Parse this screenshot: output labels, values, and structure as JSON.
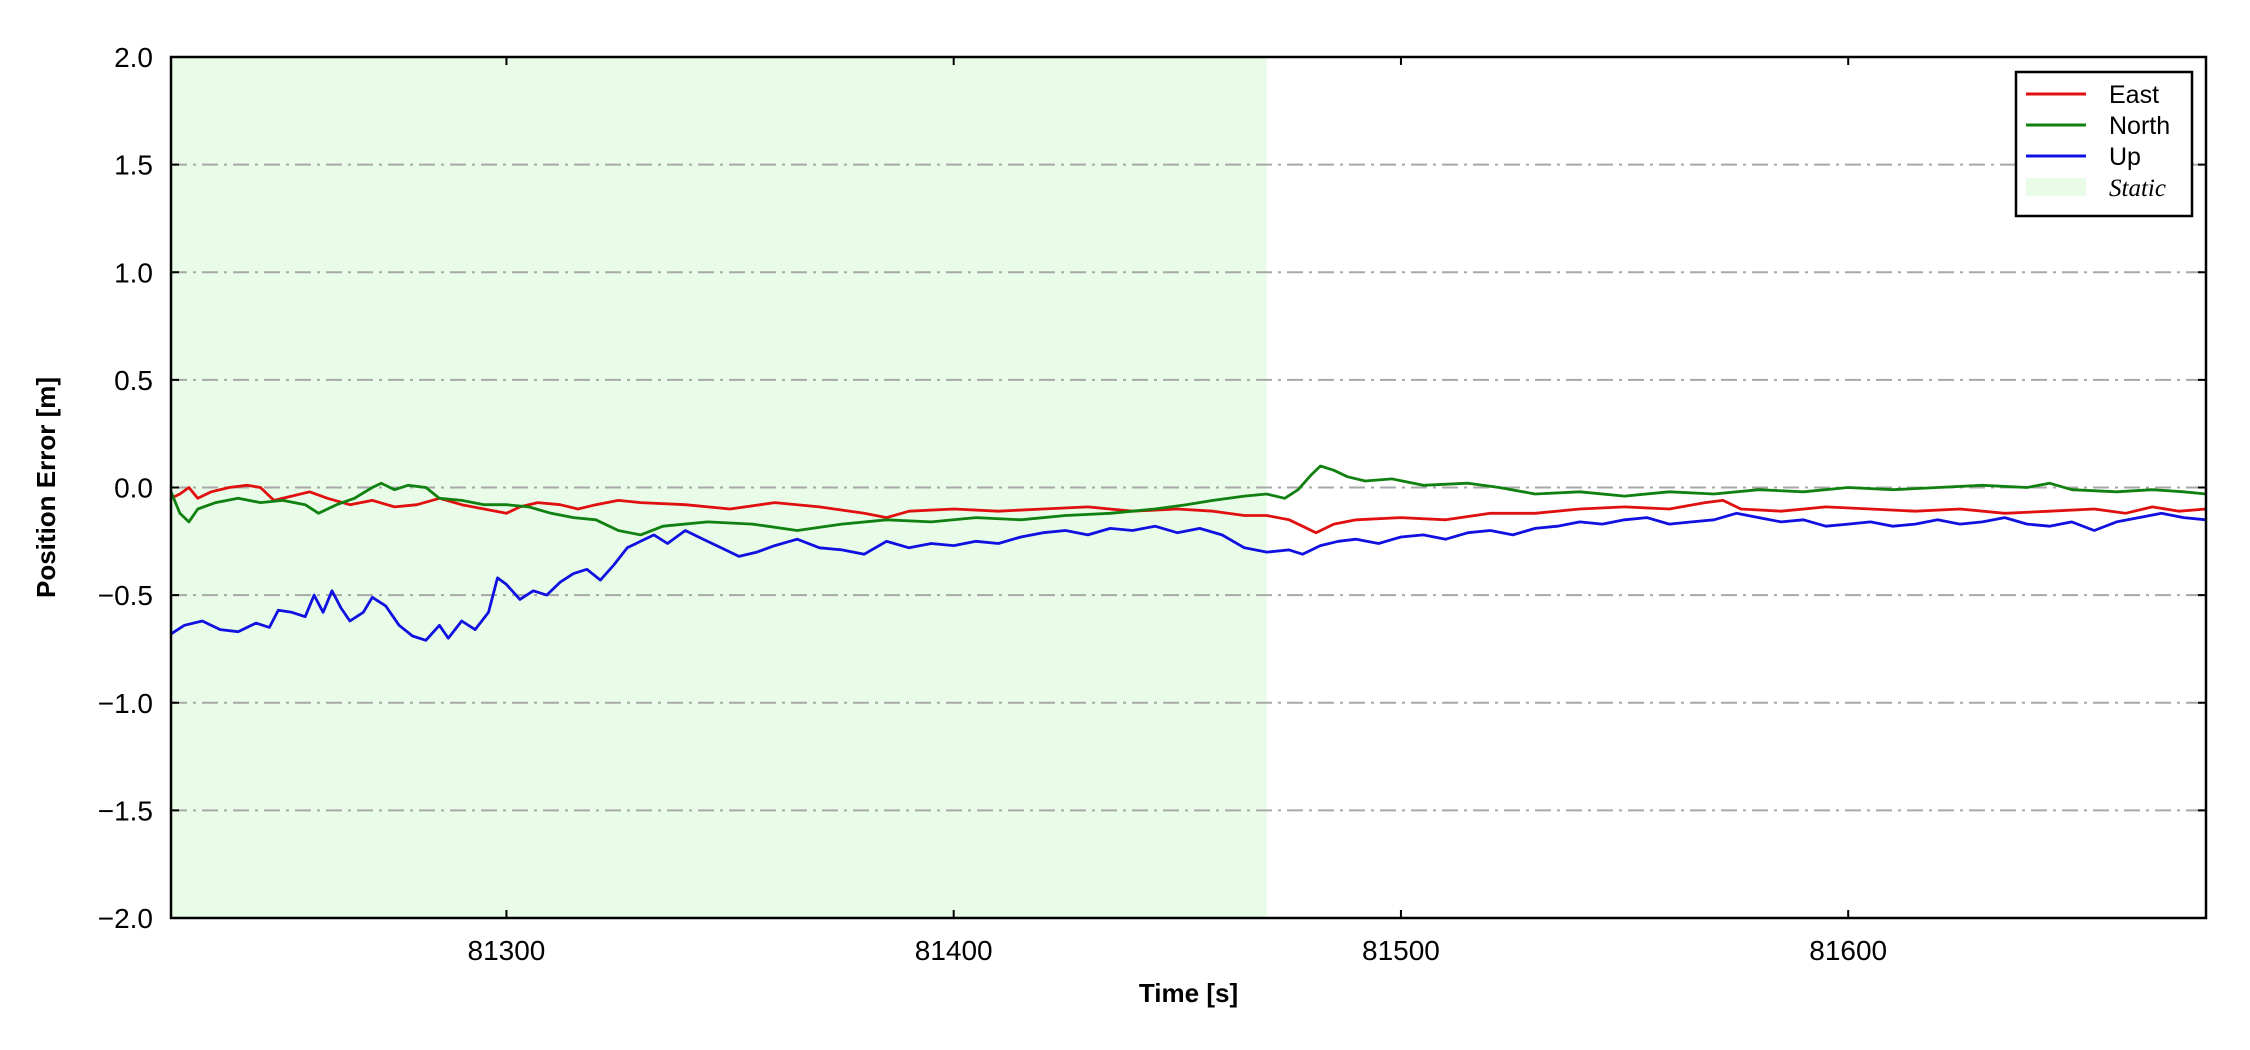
{
  "chart_data": {
    "type": "line",
    "xlabel": "Time [s]",
    "ylabel": "Position Error [m]",
    "xlim": [
      81225,
      81680
    ],
    "ylim": [
      -2.0,
      2.0
    ],
    "xticks": [
      81300,
      81400,
      81500,
      81600
    ],
    "xtick_labels": [
      "81300",
      "81400",
      "81500",
      "81600"
    ],
    "yticks": [
      2.0,
      1.5,
      1.0,
      0.5,
      0.0,
      -0.5,
      -1.0,
      -1.5,
      -2.0
    ],
    "ytick_labels": [
      "2.0",
      "1.5",
      "1.0",
      "0.5",
      "0.0",
      "−0.5",
      "−1.0",
      "−1.5",
      "−2.0"
    ],
    "grid": "horizontal dash-dot",
    "legend_placement": "top-right",
    "shaded_region": {
      "name": "Static",
      "x": [
        81225,
        81470
      ],
      "color": "#e8fce8"
    },
    "series": [
      {
        "name": "East",
        "color": "#e01010",
        "points": [
          [
            81225,
            -0.05
          ],
          [
            81227,
            -0.03
          ],
          [
            81229,
            0.0
          ],
          [
            81231,
            -0.05
          ],
          [
            81234,
            -0.02
          ],
          [
            81238,
            0.0
          ],
          [
            81242,
            0.01
          ],
          [
            81245,
            0.0
          ],
          [
            81248,
            -0.06
          ],
          [
            81252,
            -0.04
          ],
          [
            81256,
            -0.02
          ],
          [
            81260,
            -0.05
          ],
          [
            81265,
            -0.08
          ],
          [
            81270,
            -0.06
          ],
          [
            81275,
            -0.09
          ],
          [
            81280,
            -0.08
          ],
          [
            81285,
            -0.05
          ],
          [
            81290,
            -0.08
          ],
          [
            81295,
            -0.1
          ],
          [
            81300,
            -0.12
          ],
          [
            81303,
            -0.09
          ],
          [
            81307,
            -0.07
          ],
          [
            81312,
            -0.08
          ],
          [
            81316,
            -0.1
          ],
          [
            81320,
            -0.08
          ],
          [
            81325,
            -0.06
          ],
          [
            81330,
            -0.07
          ],
          [
            81340,
            -0.08
          ],
          [
            81350,
            -0.1
          ],
          [
            81360,
            -0.07
          ],
          [
            81370,
            -0.09
          ],
          [
            81380,
            -0.12
          ],
          [
            81385,
            -0.14
          ],
          [
            81390,
            -0.11
          ],
          [
            81400,
            -0.1
          ],
          [
            81410,
            -0.11
          ],
          [
            81420,
            -0.1
          ],
          [
            81430,
            -0.09
          ],
          [
            81440,
            -0.11
          ],
          [
            81450,
            -0.1
          ],
          [
            81458,
            -0.11
          ],
          [
            81465,
            -0.13
          ],
          [
            81470,
            -0.13
          ],
          [
            81475,
            -0.15
          ],
          [
            81478,
            -0.18
          ],
          [
            81481,
            -0.21
          ],
          [
            81485,
            -0.17
          ],
          [
            81490,
            -0.15
          ],
          [
            81500,
            -0.14
          ],
          [
            81510,
            -0.15
          ],
          [
            81520,
            -0.12
          ],
          [
            81530,
            -0.12
          ],
          [
            81540,
            -0.1
          ],
          [
            81550,
            -0.09
          ],
          [
            81560,
            -0.1
          ],
          [
            81568,
            -0.07
          ],
          [
            81572,
            -0.06
          ],
          [
            81576,
            -0.1
          ],
          [
            81585,
            -0.11
          ],
          [
            81595,
            -0.09
          ],
          [
            81605,
            -0.1
          ],
          [
            81615,
            -0.11
          ],
          [
            81625,
            -0.1
          ],
          [
            81635,
            -0.12
          ],
          [
            81645,
            -0.11
          ],
          [
            81655,
            -0.1
          ],
          [
            81662,
            -0.12
          ],
          [
            81668,
            -0.09
          ],
          [
            81674,
            -0.11
          ],
          [
            81680,
            -0.1
          ]
        ]
      },
      {
        "name": "North",
        "color": "#108010",
        "points": [
          [
            81225,
            -0.02
          ],
          [
            81227,
            -0.12
          ],
          [
            81229,
            -0.16
          ],
          [
            81231,
            -0.1
          ],
          [
            81235,
            -0.07
          ],
          [
            81240,
            -0.05
          ],
          [
            81245,
            -0.07
          ],
          [
            81250,
            -0.06
          ],
          [
            81255,
            -0.08
          ],
          [
            81258,
            -0.12
          ],
          [
            81262,
            -0.08
          ],
          [
            81266,
            -0.05
          ],
          [
            81270,
            0.0
          ],
          [
            81272,
            0.02
          ],
          [
            81275,
            -0.01
          ],
          [
            81278,
            0.01
          ],
          [
            81282,
            0.0
          ],
          [
            81285,
            -0.05
          ],
          [
            81290,
            -0.06
          ],
          [
            81295,
            -0.08
          ],
          [
            81300,
            -0.08
          ],
          [
            81305,
            -0.09
          ],
          [
            81310,
            -0.12
          ],
          [
            81315,
            -0.14
          ],
          [
            81320,
            -0.15
          ],
          [
            81325,
            -0.2
          ],
          [
            81330,
            -0.22
          ],
          [
            81335,
            -0.18
          ],
          [
            81345,
            -0.16
          ],
          [
            81355,
            -0.17
          ],
          [
            81365,
            -0.2
          ],
          [
            81375,
            -0.17
          ],
          [
            81385,
            -0.15
          ],
          [
            81395,
            -0.16
          ],
          [
            81405,
            -0.14
          ],
          [
            81415,
            -0.15
          ],
          [
            81425,
            -0.13
          ],
          [
            81435,
            -0.12
          ],
          [
            81445,
            -0.1
          ],
          [
            81452,
            -0.08
          ],
          [
            81458,
            -0.06
          ],
          [
            81465,
            -0.04
          ],
          [
            81470,
            -0.03
          ],
          [
            81474,
            -0.05
          ],
          [
            81477,
            -0.01
          ],
          [
            81480,
            0.06
          ],
          [
            81482,
            0.1
          ],
          [
            81485,
            0.08
          ],
          [
            81488,
            0.05
          ],
          [
            81492,
            0.03
          ],
          [
            81498,
            0.04
          ],
          [
            81505,
            0.01
          ],
          [
            81515,
            0.02
          ],
          [
            81522,
            0.0
          ],
          [
            81530,
            -0.03
          ],
          [
            81540,
            -0.02
          ],
          [
            81550,
            -0.04
          ],
          [
            81560,
            -0.02
          ],
          [
            81570,
            -0.03
          ],
          [
            81580,
            -0.01
          ],
          [
            81590,
            -0.02
          ],
          [
            81600,
            0.0
          ],
          [
            81610,
            -0.01
          ],
          [
            81620,
            0.0
          ],
          [
            81630,
            0.01
          ],
          [
            81640,
            0.0
          ],
          [
            81645,
            0.02
          ],
          [
            81650,
            -0.01
          ],
          [
            81660,
            -0.02
          ],
          [
            81668,
            -0.01
          ],
          [
            81675,
            -0.02
          ],
          [
            81680,
            -0.03
          ]
        ]
      },
      {
        "name": "Up",
        "color": "#1010e0",
        "points": [
          [
            81225,
            -0.68
          ],
          [
            81228,
            -0.64
          ],
          [
            81232,
            -0.62
          ],
          [
            81236,
            -0.66
          ],
          [
            81240,
            -0.67
          ],
          [
            81244,
            -0.63
          ],
          [
            81247,
            -0.65
          ],
          [
            81249,
            -0.57
          ],
          [
            81252,
            -0.58
          ],
          [
            81255,
            -0.6
          ],
          [
            81257,
            -0.5
          ],
          [
            81259,
            -0.58
          ],
          [
            81261,
            -0.48
          ],
          [
            81263,
            -0.56
          ],
          [
            81265,
            -0.62
          ],
          [
            81268,
            -0.58
          ],
          [
            81270,
            -0.51
          ],
          [
            81273,
            -0.55
          ],
          [
            81276,
            -0.64
          ],
          [
            81279,
            -0.69
          ],
          [
            81282,
            -0.71
          ],
          [
            81285,
            -0.64
          ],
          [
            81287,
            -0.7
          ],
          [
            81290,
            -0.62
          ],
          [
            81293,
            -0.66
          ],
          [
            81296,
            -0.58
          ],
          [
            81298,
            -0.42
          ],
          [
            81300,
            -0.45
          ],
          [
            81303,
            -0.52
          ],
          [
            81306,
            -0.48
          ],
          [
            81309,
            -0.5
          ],
          [
            81312,
            -0.44
          ],
          [
            81315,
            -0.4
          ],
          [
            81318,
            -0.38
          ],
          [
            81321,
            -0.43
          ],
          [
            81324,
            -0.36
          ],
          [
            81327,
            -0.28
          ],
          [
            81330,
            -0.25
          ],
          [
            81333,
            -0.22
          ],
          [
            81336,
            -0.26
          ],
          [
            81340,
            -0.2
          ],
          [
            81344,
            -0.24
          ],
          [
            81348,
            -0.28
          ],
          [
            81352,
            -0.32
          ],
          [
            81356,
            -0.3
          ],
          [
            81360,
            -0.27
          ],
          [
            81365,
            -0.24
          ],
          [
            81370,
            -0.28
          ],
          [
            81375,
            -0.29
          ],
          [
            81380,
            -0.31
          ],
          [
            81385,
            -0.25
          ],
          [
            81390,
            -0.28
          ],
          [
            81395,
            -0.26
          ],
          [
            81400,
            -0.27
          ],
          [
            81405,
            -0.25
          ],
          [
            81410,
            -0.26
          ],
          [
            81415,
            -0.23
          ],
          [
            81420,
            -0.21
          ],
          [
            81425,
            -0.2
          ],
          [
            81430,
            -0.22
          ],
          [
            81435,
            -0.19
          ],
          [
            81440,
            -0.2
          ],
          [
            81445,
            -0.18
          ],
          [
            81450,
            -0.21
          ],
          [
            81455,
            -0.19
          ],
          [
            81460,
            -0.22
          ],
          [
            81465,
            -0.28
          ],
          [
            81470,
            -0.3
          ],
          [
            81475,
            -0.29
          ],
          [
            81478,
            -0.31
          ],
          [
            81482,
            -0.27
          ],
          [
            81486,
            -0.25
          ],
          [
            81490,
            -0.24
          ],
          [
            81495,
            -0.26
          ],
          [
            81500,
            -0.23
          ],
          [
            81505,
            -0.22
          ],
          [
            81510,
            -0.24
          ],
          [
            81515,
            -0.21
          ],
          [
            81520,
            -0.2
          ],
          [
            81525,
            -0.22
          ],
          [
            81530,
            -0.19
          ],
          [
            81535,
            -0.18
          ],
          [
            81540,
            -0.16
          ],
          [
            81545,
            -0.17
          ],
          [
            81550,
            -0.15
          ],
          [
            81555,
            -0.14
          ],
          [
            81560,
            -0.17
          ],
          [
            81565,
            -0.16
          ],
          [
            81570,
            -0.15
          ],
          [
            81575,
            -0.12
          ],
          [
            81580,
            -0.14
          ],
          [
            81585,
            -0.16
          ],
          [
            81590,
            -0.15
          ],
          [
            81595,
            -0.18
          ],
          [
            81600,
            -0.17
          ],
          [
            81605,
            -0.16
          ],
          [
            81610,
            -0.18
          ],
          [
            81615,
            -0.17
          ],
          [
            81620,
            -0.15
          ],
          [
            81625,
            -0.17
          ],
          [
            81630,
            -0.16
          ],
          [
            81635,
            -0.14
          ],
          [
            81640,
            -0.17
          ],
          [
            81645,
            -0.18
          ],
          [
            81650,
            -0.16
          ],
          [
            81655,
            -0.2
          ],
          [
            81660,
            -0.16
          ],
          [
            81665,
            -0.14
          ],
          [
            81670,
            -0.12
          ],
          [
            81675,
            -0.14
          ],
          [
            81680,
            -0.15
          ]
        ]
      }
    ]
  }
}
